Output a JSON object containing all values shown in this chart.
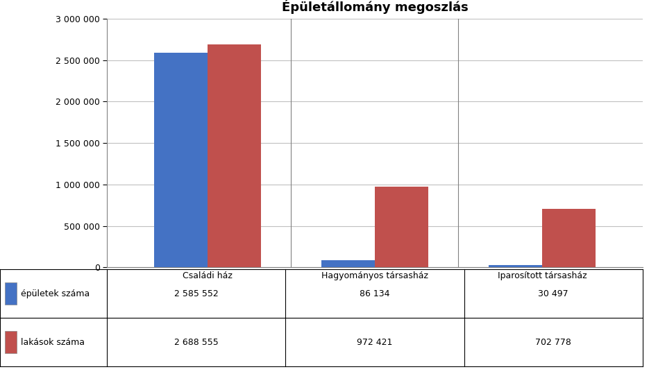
{
  "title": "Épületállomány megoszlás",
  "categories": [
    "Családi ház",
    "Hagyományos társasház",
    "Iparosított társasház"
  ],
  "series": [
    {
      "name": "épületek száma",
      "values": [
        2585552,
        86134,
        30497
      ],
      "color": "#4472C4"
    },
    {
      "name": "lakások száma",
      "values": [
        2688555,
        972421,
        702778
      ],
      "color": "#C0504D"
    }
  ],
  "ylim": [
    0,
    3000000
  ],
  "yticks": [
    0,
    500000,
    1000000,
    1500000,
    2000000,
    2500000,
    3000000
  ],
  "ytick_labels": [
    "0",
    "500 000",
    "1 000 000",
    "1 500 000",
    "2 000 000",
    "2 500 000",
    "3 000 000"
  ],
  "table_values": [
    [
      "2 585 552",
      "86 134",
      "30 497"
    ],
    [
      "2 688 555",
      "972 421",
      "702 778"
    ]
  ],
  "background_color": "#FFFFFF",
  "plot_background_color": "#FFFFFF",
  "grid_color": "#C0C0C0",
  "bar_width": 0.32,
  "title_fontsize": 13,
  "tick_fontsize": 9,
  "table_fontsize": 9
}
